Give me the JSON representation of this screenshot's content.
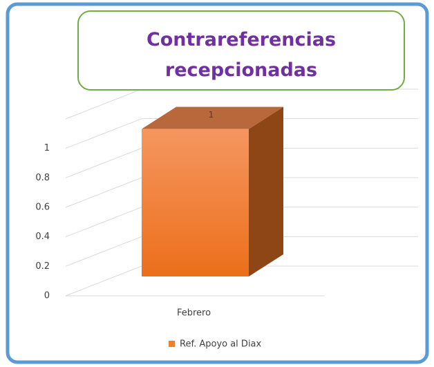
{
  "chart_data": {
    "type": "bar3d",
    "title": "Contrareferencias recepcionadas",
    "categories": [
      "Febrero"
    ],
    "series": [
      {
        "name": "Ref. Apoyo al Diax",
        "color": "#f07f2e",
        "values": [
          1
        ]
      }
    ],
    "ylim": [
      0,
      1.2
    ],
    "yticks": [
      0,
      0.2,
      0.4,
      0.6,
      0.8,
      1
    ],
    "grid": true,
    "legend": "bottom"
  }
}
